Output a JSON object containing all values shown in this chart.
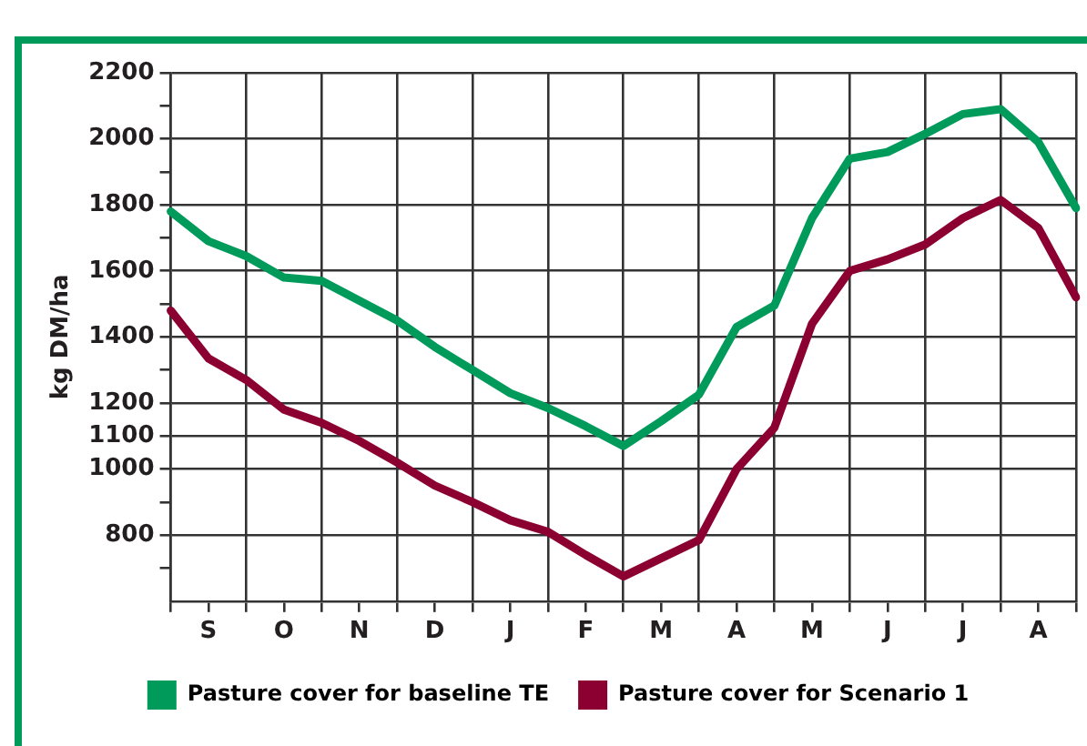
{
  "chart_data": {
    "type": "line",
    "ylabel": "kg DM/ha",
    "categories": [
      null,
      "S",
      null,
      "O",
      null,
      "N",
      null,
      "D",
      null,
      "J",
      null,
      "F",
      null,
      "M",
      null,
      "A",
      null,
      "M",
      null,
      "J",
      null,
      "J",
      null,
      "A",
      null
    ],
    "ylim": [
      600,
      2200
    ],
    "yticks": [
      2200,
      {
        "value": 2100,
        "label": null
      },
      2000,
      {
        "value": 1900,
        "label": null
      },
      1800,
      {
        "value": 1700,
        "label": null
      },
      1600,
      {
        "value": 1500,
        "label": null
      },
      1400,
      {
        "value": 1300,
        "label": null
      },
      1200,
      1100,
      1000,
      {
        "value": 900,
        "label": null
      },
      800,
      {
        "value": 700,
        "label": null
      }
    ],
    "grid": true,
    "legend": "bottom",
    "marker": "none",
    "line_style": "solid",
    "series": [
      {
        "name": "Pasture cover for baseline TE",
        "color": "#009a5b",
        "values": [
          1780,
          1690,
          1645,
          1580,
          1570,
          1510,
          1450,
          1370,
          1300,
          1230,
          1185,
          1130,
          1070,
          1145,
          1225,
          1430,
          1495,
          1760,
          1940,
          1960,
          2015,
          2075,
          2090,
          1990,
          1790
        ]
      },
      {
        "name": "Pasture cover for Scenario 1",
        "color": "#8b0030",
        "values": [
          1480,
          1335,
          1270,
          1180,
          1140,
          1085,
          1020,
          950,
          900,
          845,
          810,
          740,
          675,
          730,
          785,
          1000,
          1125,
          1440,
          1600,
          1635,
          1680,
          1760,
          1815,
          1730,
          1520
        ]
      }
    ]
  }
}
